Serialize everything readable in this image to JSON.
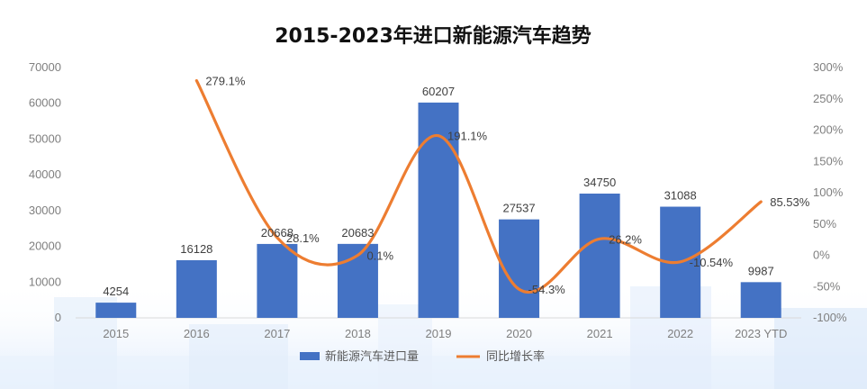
{
  "chart_data": {
    "type": "bar",
    "title": "2015-2023年进口新能源汽车趋势",
    "categories": [
      "2015",
      "2016",
      "2017",
      "2018",
      "2019",
      "2020",
      "2021",
      "2022",
      "2023 YTD"
    ],
    "series": [
      {
        "name": "新能源汽车进口量",
        "type": "bar",
        "axis": "left",
        "color": "#4472c4",
        "values": [
          4254,
          16128,
          20668,
          20683,
          60207,
          27537,
          34750,
          31088,
          9987
        ],
        "labels": [
          "4254",
          "16128",
          "20668",
          "20683",
          "60207",
          "27537",
          "34750",
          "31088",
          "9987"
        ]
      },
      {
        "name": "同比增长率",
        "type": "line",
        "axis": "right",
        "color": "#ed7d31",
        "values": [
          null,
          279.1,
          28.1,
          0.1,
          191.1,
          -54.3,
          26.2,
          -10.54,
          85.53
        ],
        "labels": [
          "",
          "279.1%",
          "28.1%",
          "0.1%",
          "191.1%",
          "-54.3%",
          "26.2%",
          "-10.54%",
          "85.53%"
        ]
      }
    ],
    "ylim_left": [
      0,
      70000
    ],
    "ylim_right": [
      -100,
      300
    ],
    "left_ticks": [
      "0",
      "10000",
      "20000",
      "30000",
      "40000",
      "50000",
      "60000",
      "70000"
    ],
    "right_ticks": [
      "-100%",
      "-50%",
      "0%",
      "50%",
      "100%",
      "150%",
      "200%",
      "250%",
      "300%"
    ],
    "grid": false,
    "legend": "bottom"
  }
}
